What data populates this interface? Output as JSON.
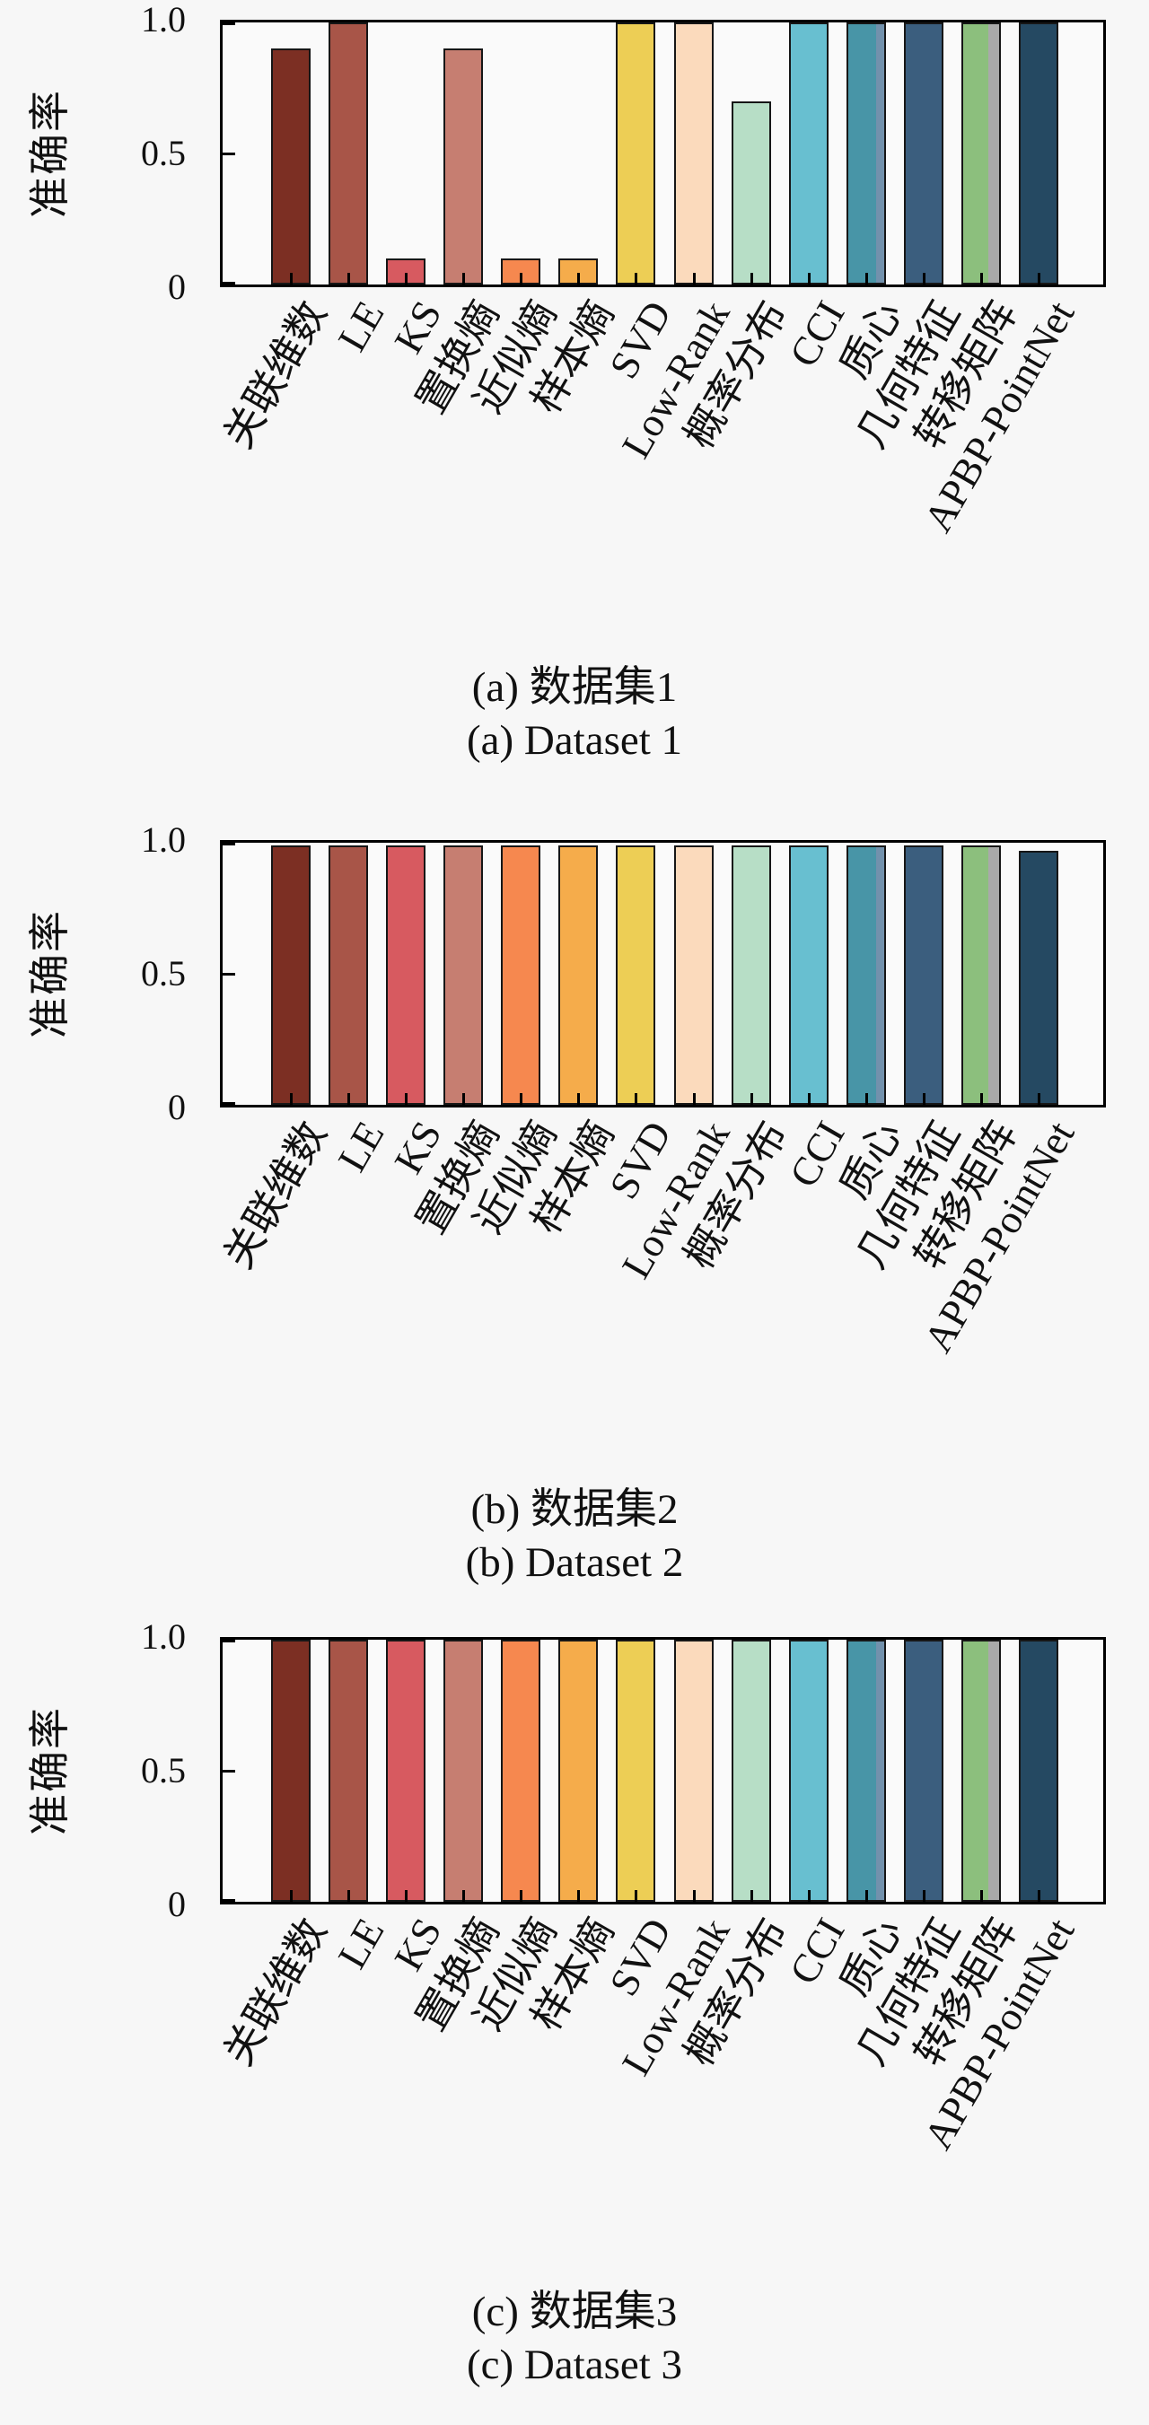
{
  "figure": {
    "name": "准确率对比条形图（三个数据集）",
    "background": "#f7f7f7",
    "plot_background": "#fafafa",
    "frame_color": "#000000",
    "bar_edge_color": "#161616",
    "bar_colors": [
      "#7c2f23",
      "#a85548",
      "#d75a60",
      "#c67e71",
      "#f6884f",
      "#f5ac4b",
      "#edce55",
      "#fbdabc",
      "#b7dec6",
      "#68bfd0",
      "#4895a7",
      "#3b5e7e",
      "#8cbf7d",
      "#254962"
    ],
    "bar_stripes": [
      {
        "index": 10,
        "color": "#7291ac",
        "frac": 0.22
      },
      {
        "index": 12,
        "color": "#a9a9a9",
        "frac": 0.3
      }
    ]
  },
  "chart_data": [
    {
      "type": "bar",
      "caption_zh": "(a) 数据集1",
      "caption_en": "(a) Dataset 1",
      "ylabel": "准确率",
      "ylim": [
        0,
        1.0
      ],
      "yticks": [
        "0",
        "0.5",
        "1.0"
      ],
      "grid": false,
      "legend": "none",
      "categories": [
        "关联维数",
        "LE",
        "KS",
        "置换熵",
        "近似熵",
        "样本熵",
        "SVD",
        "Low-Rank",
        "概率分布",
        "CCI",
        "质心",
        "几何特征",
        "转移矩阵",
        "APBP-PointNet"
      ],
      "values": [
        0.9,
        1.0,
        0.1,
        0.9,
        0.1,
        0.1,
        1.0,
        1.0,
        0.7,
        1.0,
        1.0,
        1.0,
        1.0,
        1.0
      ]
    },
    {
      "type": "bar",
      "caption_zh": "(b) 数据集2",
      "caption_en": "(b) Dataset 2",
      "ylabel": "准确率",
      "ylim": [
        0,
        1.0
      ],
      "yticks": [
        "0",
        "0.5",
        "1.0"
      ],
      "grid": false,
      "legend": "none",
      "categories": [
        "关联维数",
        "LE",
        "KS",
        "置换熵",
        "近似熵",
        "样本熵",
        "SVD",
        "Low-Rank",
        "概率分布",
        "CCI",
        "质心",
        "几何特征",
        "转移矩阵",
        "APBP-PointNet"
      ],
      "values": [
        0.99,
        0.99,
        0.99,
        0.99,
        0.99,
        0.99,
        0.99,
        0.99,
        0.99,
        0.99,
        0.99,
        0.99,
        0.99,
        0.97
      ]
    },
    {
      "type": "bar",
      "caption_zh": "(c) 数据集3",
      "caption_en": "(c) Dataset 3",
      "ylabel": "准确率",
      "ylim": [
        0,
        1.0
      ],
      "yticks": [
        "0",
        "0.5",
        "1.0"
      ],
      "grid": false,
      "legend": "none",
      "categories": [
        "关联维数",
        "LE",
        "KS",
        "置换熵",
        "近似熵",
        "样本熵",
        "SVD",
        "Low-Rank",
        "概率分布",
        "CCI",
        "质心",
        "几何特征",
        "转移矩阵",
        "APBP-PointNet"
      ],
      "values": [
        1.0,
        1.0,
        1.0,
        1.0,
        1.0,
        1.0,
        1.0,
        1.0,
        1.0,
        1.0,
        1.0,
        1.0,
        1.0,
        1.0
      ]
    }
  ]
}
